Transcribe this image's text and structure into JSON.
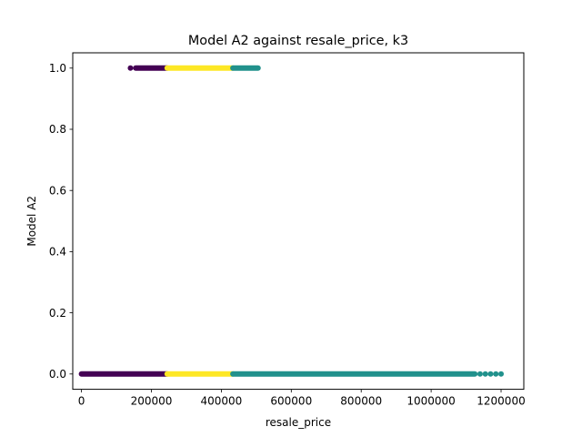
{
  "chart_data": {
    "type": "scatter",
    "title": "Model A2 against resale_price, k3",
    "xlabel": "resale_price",
    "ylabel": "Model A2",
    "xlim": [
      -25000,
      1265000
    ],
    "ylim": [
      -0.05,
      1.05
    ],
    "xticks": [
      0,
      200000,
      400000,
      600000,
      800000,
      1000000,
      1200000
    ],
    "xtick_labels": [
      "0",
      "200000",
      "400000",
      "600000",
      "800000",
      "1000000",
      "1200000"
    ],
    "yticks": [
      0.0,
      0.2,
      0.4,
      0.6,
      0.8,
      1.0
    ],
    "ytick_labels": [
      "0.0",
      "0.2",
      "0.4",
      "0.6",
      "0.8",
      "1.0"
    ],
    "grid": false,
    "legend": "none",
    "series": [
      {
        "color": "#440154",
        "segments": [
          {
            "y": 1,
            "x_start": 155000,
            "x_end": 245000
          },
          {
            "y": 0,
            "x_start": 0,
            "x_end": 245000
          }
        ],
        "points": [
          {
            "x": 140000,
            "y": 1
          }
        ]
      },
      {
        "color": "#fde725",
        "segments": [
          {
            "y": 1,
            "x_start": 245000,
            "x_end": 433000
          },
          {
            "y": 0,
            "x_start": 245000,
            "x_end": 433000
          }
        ],
        "points": []
      },
      {
        "color": "#21918c",
        "segments": [
          {
            "y": 1,
            "x_start": 433000,
            "x_end": 505000
          },
          {
            "y": 0,
            "x_start": 433000,
            "x_end": 1125000
          }
        ],
        "points": [
          {
            "x": 1140000,
            "y": 0
          },
          {
            "x": 1155000,
            "y": 0
          },
          {
            "x": 1170000,
            "y": 0
          },
          {
            "x": 1185000,
            "y": 0
          },
          {
            "x": 1200000,
            "y": 0
          }
        ]
      }
    ]
  }
}
